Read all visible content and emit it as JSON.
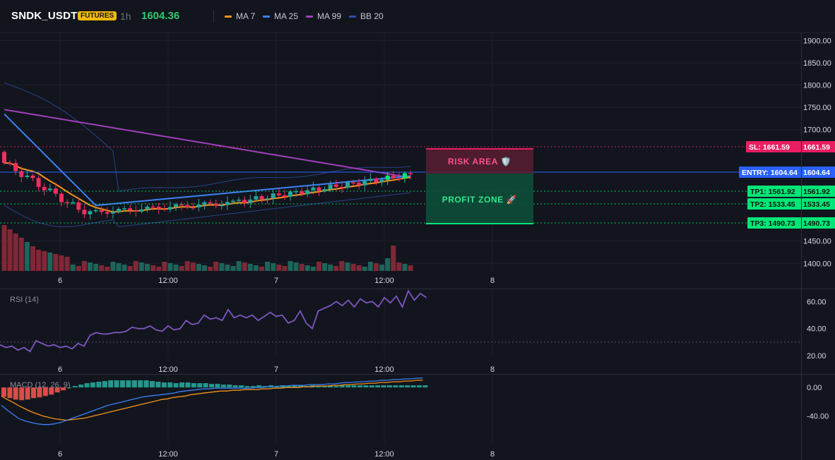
{
  "header": {
    "symbol": "SNDK_USDT",
    "badge": "FUTURES",
    "timeframe": "1h",
    "last_price": "1604.36",
    "legend": [
      {
        "label": "MA 7",
        "color": "#f7931a"
      },
      {
        "label": "MA 25",
        "color": "#3b82f6"
      },
      {
        "label": "MA 99",
        "color": "#a33fbf"
      },
      {
        "label": "BB 20",
        "color": "#2f4fa8"
      }
    ]
  },
  "colors": {
    "up": "#26a69a",
    "up_bright": "#00e676",
    "down": "#ef2f5e",
    "vol_up": "#1f6e62",
    "vol_down": "#8c2a3a",
    "sl": "#e91e63",
    "entry": "#2962ff",
    "tp": "#00e676",
    "rsi": "#7e57c2",
    "macd": "#3b82f6",
    "signal": "#f7931a",
    "hist_pos": "#26a69a",
    "hist_neg": "#ef5350"
  },
  "x_axis": {
    "ticks": [
      {
        "label": "6",
        "pos": 0.1
      },
      {
        "label": "12:00",
        "pos": 0.25
      },
      {
        "label": "7",
        "pos": 0.4
      },
      {
        "label": "12:00",
        "pos": 0.55
      },
      {
        "label": "8",
        "pos": 0.7
      }
    ]
  },
  "trade": {
    "risk_label": "RISK AREA 🛡️",
    "profit_label": "PROFIT ZONE 🚀",
    "levels": [
      {
        "key": "sl",
        "label": "SL: 1661.59",
        "value": 1661.59,
        "value_label": "1661.59"
      },
      {
        "key": "entry",
        "label": "ENTRY: 1604.64",
        "value": 1604.64,
        "value_label": "1604.64"
      },
      {
        "key": "tp1",
        "label": "TP1: 1561.92",
        "value": 1561.92,
        "value_label": "1561.92"
      },
      {
        "key": "tp2",
        "label": "TP2: 1533.45",
        "value": 1533.45,
        "value_label": "1533.45"
      },
      {
        "key": "tp3",
        "label": "TP3: 1490.73",
        "value": 1490.73,
        "value_label": "1490.73"
      }
    ]
  },
  "chart_data": [
    {
      "type": "candlestick",
      "title": "SNDK_USDT",
      "y_ticks": [
        "1900.00",
        "1850.00",
        "1800.00",
        "1750.00",
        "1700.00",
        "1450.00",
        "1400.00"
      ],
      "y_tick_values": [
        1900,
        1850,
        1800,
        1750,
        1700,
        1450,
        1400
      ],
      "ylim": [
        1383,
        1918
      ],
      "overlays": [
        "MA 7",
        "MA 25",
        "MA 99",
        "BB 20"
      ]
    },
    {
      "type": "line",
      "title": "RSI (14)",
      "y_ticks": [
        "60.00",
        "40.00",
        "20.00"
      ],
      "y_tick_values": [
        60,
        40,
        20
      ],
      "ylim": [
        20,
        67
      ],
      "reference_line": 30,
      "values": [
        28,
        26,
        27,
        24,
        26,
        23,
        31,
        29,
        27,
        28,
        26,
        27,
        25,
        29,
        27,
        35,
        37,
        36,
        36,
        37,
        37,
        38,
        41,
        40,
        40,
        42,
        39,
        38,
        42,
        39,
        40,
        46,
        43,
        44,
        50,
        47,
        48,
        46,
        54,
        48,
        50,
        48,
        50,
        46,
        49,
        52,
        49,
        50,
        44,
        46,
        53,
        44,
        40,
        53,
        55,
        57,
        60,
        57,
        61,
        56,
        62,
        59,
        60,
        56,
        63,
        59,
        64,
        56,
        68,
        61,
        66,
        63
      ]
    },
    {
      "type": "line",
      "title": "MACD (12, 26, 9)",
      "y_ticks": [
        "0.00",
        "-40.00"
      ],
      "y_tick_values": [
        0,
        -40
      ],
      "ylim": [
        -78,
        14
      ],
      "series": [
        {
          "name": "MACD",
          "values": [
            -25,
            -32,
            -38,
            -44,
            -47,
            -49,
            -51,
            -52,
            -52,
            -51,
            -49,
            -46,
            -43,
            -40,
            -37,
            -34,
            -31,
            -28,
            -25,
            -23,
            -21,
            -19,
            -17,
            -15,
            -13,
            -12,
            -11,
            -10,
            -9,
            -8,
            -6,
            -5,
            -4,
            -3,
            -2,
            -2,
            -1,
            -1,
            -1,
            -1,
            -1,
            -1,
            -1,
            0,
            0,
            1,
            1,
            2,
            2,
            3,
            3,
            3,
            4,
            4,
            4,
            5,
            5,
            6,
            7,
            7,
            8,
            8,
            9,
            9,
            10,
            10,
            11,
            11,
            12,
            12,
            13,
            13
          ]
        },
        {
          "name": "Signal",
          "values": [
            -12,
            -17,
            -21,
            -26,
            -30,
            -34,
            -37,
            -40,
            -42,
            -44,
            -45,
            -46,
            -45,
            -44,
            -43,
            -41,
            -39,
            -37,
            -35,
            -33,
            -31,
            -29,
            -27,
            -25,
            -23,
            -21,
            -19,
            -17,
            -16,
            -14,
            -13,
            -12,
            -10,
            -9,
            -8,
            -7,
            -6,
            -5,
            -5,
            -4,
            -4,
            -3,
            -3,
            -3,
            -2,
            -2,
            -1,
            -1,
            0,
            0,
            0,
            1,
            1,
            2,
            2,
            2,
            3,
            3,
            4,
            4,
            5,
            5,
            6,
            6,
            7,
            7,
            8,
            8,
            9,
            9,
            10,
            10
          ]
        }
      ],
      "histogram": [
        -13,
        -15,
        -17,
        -18,
        -17,
        -15,
        -14,
        -12,
        -10,
        -7,
        -4,
        0,
        2,
        4,
        6,
        7,
        8,
        9,
        10,
        10,
        10,
        10,
        10,
        10,
        10,
        9,
        8,
        7,
        7,
        6,
        7,
        7,
        6,
        6,
        6,
        5,
        5,
        4,
        4,
        3,
        3,
        2,
        2,
        3,
        2,
        3,
        2,
        3,
        2,
        3,
        3,
        2,
        3,
        2,
        2,
        3,
        2,
        3,
        3,
        3,
        3,
        3,
        3,
        3,
        3,
        3,
        3,
        3,
        3,
        3,
        3,
        3
      ]
    }
  ]
}
